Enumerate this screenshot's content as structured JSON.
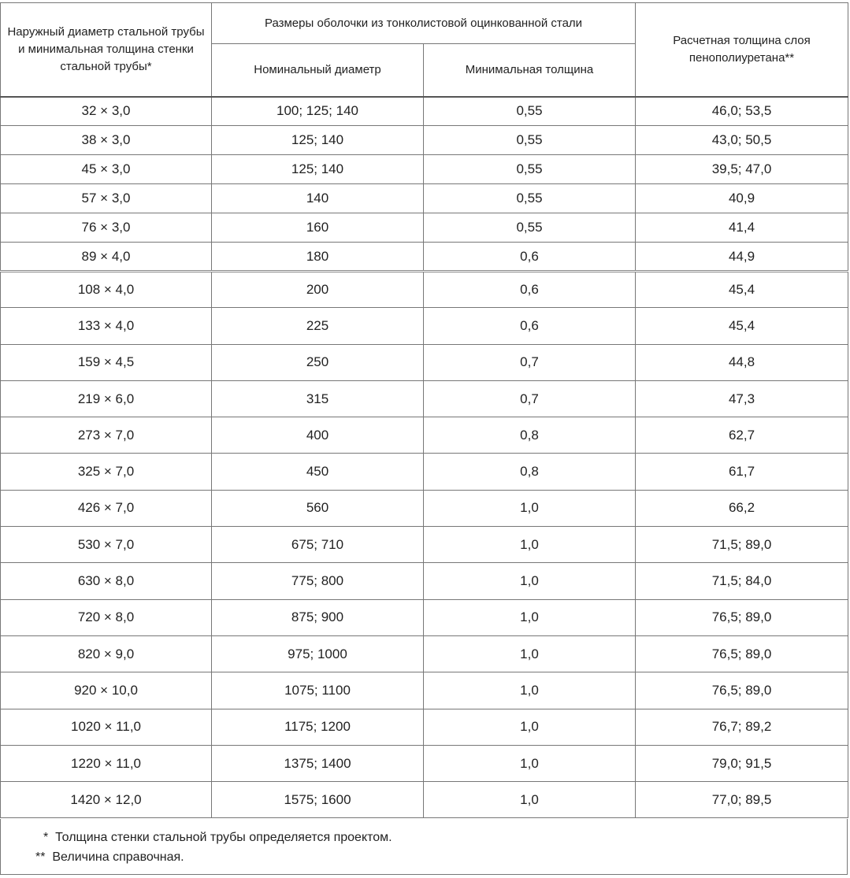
{
  "headers": {
    "col1": "Наружный диаметр стальной трубы и минимальная толщина стенки стальной трубы*",
    "group": "Размеры оболочки из тонколистовой оцинкованной стали",
    "col2": "Номинальный диаметр",
    "col3": "Минимальная толщина",
    "col4": "Расчетная толщина слоя пенополиуретана**"
  },
  "rows": [
    [
      "32 × 3,0",
      "100; 125; 140",
      "0,55",
      "46,0; 53,5"
    ],
    [
      "38 × 3,0",
      "125; 140",
      "0,55",
      "43,0; 50,5"
    ],
    [
      "45 × 3,0",
      "125; 140",
      "0,55",
      "39,5; 47,0"
    ],
    [
      "57 × 3,0",
      "140",
      "0,55",
      "40,9"
    ],
    [
      "76 × 3,0",
      "160",
      "0,55",
      "41,4"
    ],
    [
      "89 × 4,0",
      "180",
      "0,6",
      "44,9"
    ],
    [
      "108 × 4,0",
      "200",
      "0,6",
      "45,4"
    ],
    [
      "133 × 4,0",
      "225",
      "0,6",
      "45,4"
    ],
    [
      "159 × 4,5",
      "250",
      "0,7",
      "44,8"
    ],
    [
      "219 × 6,0",
      "315",
      "0,7",
      "47,3"
    ],
    [
      "273 × 7,0",
      "400",
      "0,8",
      "62,7"
    ],
    [
      "325 × 7,0",
      "450",
      "0,8",
      "61,7"
    ],
    [
      "426 × 7,0",
      "560",
      "1,0",
      "66,2"
    ],
    [
      "530 × 7,0",
      "675; 710",
      "1,0",
      "71,5; 89,0"
    ],
    [
      "630 × 8,0",
      "775; 800",
      "1,0",
      "71,5; 84,0"
    ],
    [
      "720 × 8,0",
      "875; 900",
      "1,0",
      "76,5; 89,0"
    ],
    [
      "820 × 9,0",
      "975; 1000",
      "1,0",
      "76,5; 89,0"
    ],
    [
      "920 × 10,0",
      "1075; 1100",
      "1,0",
      "76,5; 89,0"
    ],
    [
      "1020 × 11,0",
      "1175; 1200",
      "1,0",
      "76,7; 89,2"
    ],
    [
      "1220 × 11,0",
      "1375; 1400",
      "1,0",
      "79,0; 91,5"
    ],
    [
      "1420 × 12,0",
      "1575; 1600",
      "1,0",
      "77,0; 89,5"
    ]
  ],
  "footnotes": [
    {
      "mark": "*",
      "text": "Толщина стенки стальной трубы определяется проектом."
    },
    {
      "mark": "**",
      "text": "Величина справочная."
    }
  ]
}
